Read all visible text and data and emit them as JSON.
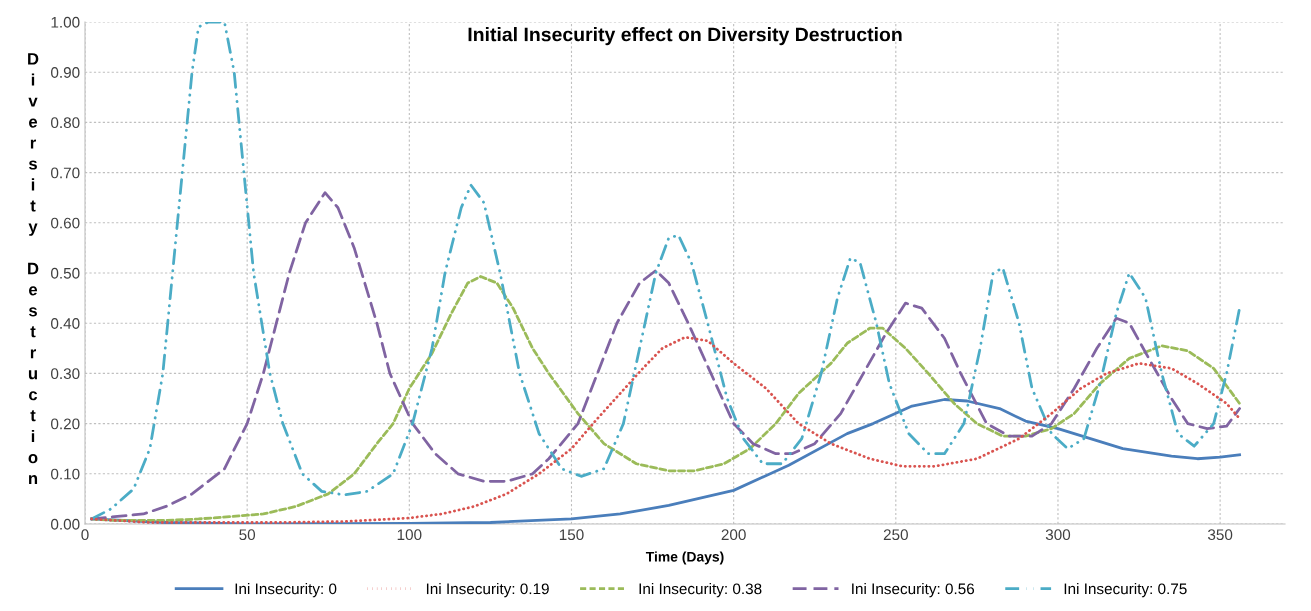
{
  "chart_data": {
    "type": "line",
    "title": "Initial Insecurity effect on Diversity Destruction",
    "xlabel": "Time (Days)",
    "ylabel": "Diversity Destruction",
    "xlim": [
      0,
      370
    ],
    "xticks": [
      0,
      50,
      100,
      150,
      200,
      250,
      300,
      350
    ],
    "ylim": [
      0,
      1
    ],
    "yticks": [
      {
        "value": 0,
        "label": "0.00"
      },
      {
        "value": 0.1,
        "label": "0.10"
      },
      {
        "value": 0.2,
        "label": "0.20"
      },
      {
        "value": 0.3,
        "label": "0.30"
      },
      {
        "value": 0.4,
        "label": "0.40"
      },
      {
        "value": 0.5,
        "label": "0.50"
      },
      {
        "value": 0.6,
        "label": "0.60"
      },
      {
        "value": 0.7,
        "label": "0.70"
      },
      {
        "value": 0.8,
        "label": "0.80"
      },
      {
        "value": 0.9,
        "label": "0.90"
      },
      {
        "value": 1,
        "label": "1.00"
      }
    ],
    "grid": true,
    "legend": "bottom",
    "marker": "none",
    "series": [
      {
        "name": "Ini Insecurity: 0",
        "color": "#4a7ebb",
        "line_style": "solid",
        "x": [
          2,
          25,
          50,
          100,
          125,
          150,
          165,
          180,
          200,
          217,
          235,
          243,
          255,
          265,
          272,
          282,
          290,
          300,
          310,
          320,
          335,
          343,
          350,
          356
        ],
        "values": [
          0.01,
          0.003,
          0.0,
          0.001,
          0.003,
          0.01,
          0.02,
          0.037,
          0.067,
          0.117,
          0.18,
          0.2,
          0.235,
          0.248,
          0.245,
          0.23,
          0.205,
          0.19,
          0.17,
          0.15,
          0.135,
          0.13,
          0.133,
          0.138
        ]
      },
      {
        "name": "Ini Insecurity: 0.19",
        "color": "#d9534f",
        "line_style": "dotted",
        "x": [
          2,
          20,
          60,
          80,
          100,
          110,
          120,
          130,
          140,
          150,
          158,
          165,
          172,
          178,
          185,
          192,
          200,
          210,
          220,
          230,
          242,
          252,
          262,
          275,
          288,
          298,
          307,
          315,
          325,
          335,
          343,
          352,
          356
        ],
        "values": [
          0.01,
          0.003,
          0.003,
          0.005,
          0.012,
          0.02,
          0.035,
          0.06,
          0.1,
          0.15,
          0.21,
          0.26,
          0.31,
          0.35,
          0.372,
          0.365,
          0.32,
          0.27,
          0.2,
          0.16,
          0.13,
          0.115,
          0.115,
          0.13,
          0.17,
          0.22,
          0.27,
          0.3,
          0.32,
          0.31,
          0.28,
          0.24,
          0.21
        ]
      },
      {
        "name": "Ini Insecurity: 0.38",
        "color": "#9bbb59",
        "line_style": "dashed",
        "x": [
          2,
          10,
          25,
          35,
          45,
          55,
          65,
          75,
          83,
          90,
          95,
          100,
          107,
          113,
          118,
          122,
          127,
          132,
          138,
          143,
          152,
          160,
          170,
          180,
          188,
          197,
          205,
          213,
          220,
          230,
          235,
          242,
          246,
          253,
          260,
          268,
          275,
          283,
          290,
          298,
          305,
          313,
          322,
          332,
          340,
          348,
          356
        ],
        "values": [
          0.01,
          0.007,
          0.007,
          0.01,
          0.015,
          0.02,
          0.035,
          0.06,
          0.1,
          0.16,
          0.2,
          0.27,
          0.34,
          0.42,
          0.48,
          0.493,
          0.48,
          0.43,
          0.35,
          0.3,
          0.22,
          0.16,
          0.12,
          0.106,
          0.106,
          0.12,
          0.15,
          0.2,
          0.26,
          0.32,
          0.36,
          0.39,
          0.39,
          0.35,
          0.3,
          0.24,
          0.2,
          0.175,
          0.175,
          0.19,
          0.22,
          0.28,
          0.33,
          0.355,
          0.345,
          0.31,
          0.24
        ]
      },
      {
        "name": "Ini Insecurity: 0.56",
        "color": "#8064a2",
        "line_style": "longdash",
        "x": [
          2,
          10,
          18,
          25,
          33,
          43,
          50,
          55,
          59,
          63,
          68,
          74,
          78,
          83,
          90,
          94,
          101,
          108,
          115,
          123,
          130,
          138,
          143,
          152,
          158,
          164,
          171,
          176,
          180,
          186,
          193,
          200,
          206,
          213,
          218,
          225,
          233,
          240,
          247,
          253,
          258,
          265,
          270,
          278,
          285,
          292,
          298,
          305,
          312,
          318,
          322,
          328,
          335,
          340,
          346,
          352,
          356
        ],
        "values": [
          0.01,
          0.015,
          0.02,
          0.035,
          0.06,
          0.11,
          0.2,
          0.3,
          0.4,
          0.5,
          0.6,
          0.66,
          0.63,
          0.55,
          0.4,
          0.3,
          0.2,
          0.14,
          0.1,
          0.085,
          0.085,
          0.1,
          0.13,
          0.2,
          0.3,
          0.4,
          0.48,
          0.505,
          0.48,
          0.4,
          0.3,
          0.2,
          0.16,
          0.14,
          0.14,
          0.16,
          0.22,
          0.3,
          0.38,
          0.44,
          0.43,
          0.37,
          0.3,
          0.2,
          0.175,
          0.175,
          0.2,
          0.27,
          0.35,
          0.41,
          0.4,
          0.33,
          0.25,
          0.2,
          0.19,
          0.195,
          0.23
        ]
      },
      {
        "name": "Ini Insecurity: 0.75",
        "color": "#4bacc6",
        "line_style": "dashdotdot",
        "x": [
          2,
          8,
          15,
          20,
          24,
          27,
          30,
          33,
          35,
          38,
          43,
          46,
          49,
          52,
          57,
          61,
          67,
          73,
          80,
          87,
          95,
          101,
          107,
          111,
          116,
          119,
          123,
          128,
          134,
          140,
          147,
          153,
          160,
          166,
          171,
          176,
          180,
          183,
          187,
          192,
          198,
          203,
          209,
          215,
          221,
          227,
          232,
          236,
          239,
          244,
          248,
          254,
          260,
          265,
          271,
          276,
          280,
          283,
          288,
          292,
          298,
          303,
          308,
          313,
          318,
          322,
          327,
          332,
          337,
          342,
          348,
          352,
          356
        ],
        "values": [
          0.01,
          0.03,
          0.07,
          0.15,
          0.3,
          0.5,
          0.7,
          0.9,
          0.99,
          1.0,
          1.0,
          0.9,
          0.7,
          0.5,
          0.3,
          0.2,
          0.1,
          0.065,
          0.058,
          0.065,
          0.1,
          0.2,
          0.35,
          0.5,
          0.63,
          0.675,
          0.64,
          0.5,
          0.3,
          0.18,
          0.11,
          0.095,
          0.11,
          0.2,
          0.35,
          0.5,
          0.57,
          0.575,
          0.52,
          0.4,
          0.25,
          0.17,
          0.12,
          0.12,
          0.17,
          0.3,
          0.45,
          0.53,
          0.52,
          0.4,
          0.28,
          0.18,
          0.14,
          0.14,
          0.2,
          0.35,
          0.5,
          0.51,
          0.4,
          0.27,
          0.18,
          0.15,
          0.17,
          0.28,
          0.42,
          0.5,
          0.45,
          0.3,
          0.18,
          0.155,
          0.2,
          0.3,
          0.43
        ]
      }
    ]
  }
}
